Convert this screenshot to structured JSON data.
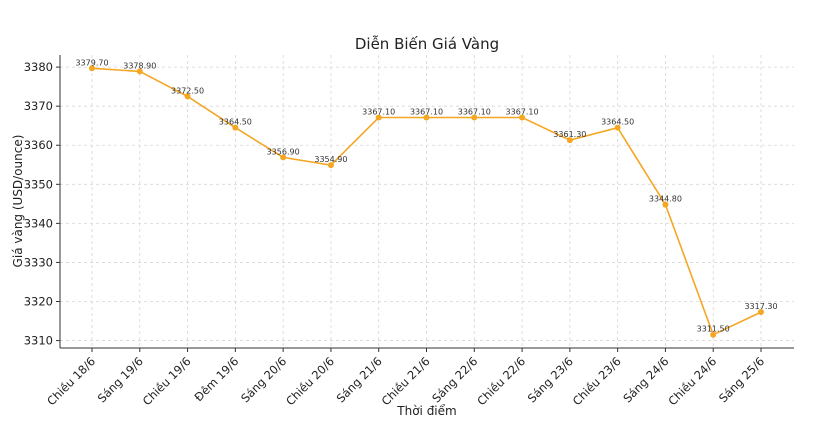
{
  "chart_data": {
    "type": "line",
    "title": "Diễn Biến Giá Vàng",
    "xlabel": "Thời điểm",
    "ylabel": "Giá vàng (USD/ounce)",
    "categories": [
      "Chiều 18/6",
      "Sáng 19/6",
      "Chiều 19/6",
      "Đêm 19/6",
      "Sáng 20/6",
      "Chiều 20/6",
      "Sáng 21/6",
      "Chiều 21/6",
      "Sáng 22/6",
      "Chiều 22/6",
      "Sáng 23/6",
      "Chiều 23/6",
      "Sáng 24/6",
      "Chiều 24/6",
      "Sáng 25/6"
    ],
    "values": [
      3379.7,
      3378.9,
      3372.5,
      3364.5,
      3356.9,
      3354.9,
      3367.1,
      3367.1,
      3367.1,
      3367.1,
      3361.3,
      3364.5,
      3344.8,
      3311.5,
      3317.3
    ],
    "data_labels": [
      "3379.70",
      "3378.90",
      "3372.50",
      "3364.50",
      "3356.90",
      "3354.90",
      "3367.10",
      "3367.10",
      "3367.10",
      "3367.10",
      "3361.30",
      "3364.50",
      "3344.80",
      "3311.50",
      "3317.30"
    ],
    "yticks": [
      3310,
      3320,
      3330,
      3340,
      3350,
      3360,
      3370,
      3380
    ],
    "ylim": [
      3308.1,
      3383.1
    ],
    "grid": true,
    "color": "#f5a623"
  }
}
